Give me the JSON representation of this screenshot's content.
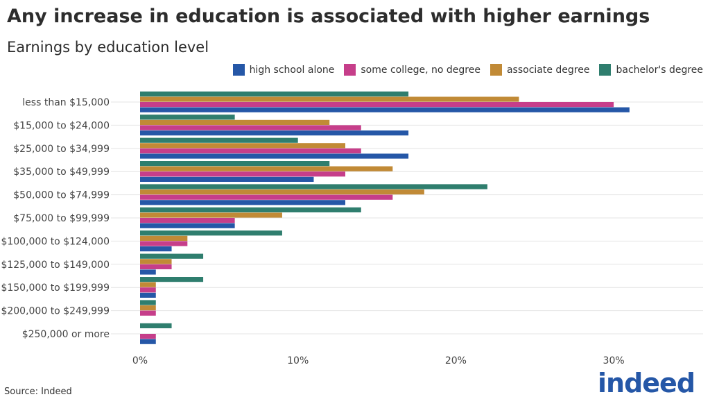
{
  "title": "Any increase in education is associated with higher earnings",
  "subtitle": "Earnings by education level",
  "source": "Source: Indeed",
  "logo": "indeed",
  "chart_data": {
    "type": "bar",
    "orientation": "horizontal",
    "categories": [
      "less than $15,000",
      "$15,000 to $24,000",
      "$25,000 to $34,999",
      "$35,000 to $49,999",
      "$50,000 to $74,999",
      "$75,000 to $99,999",
      "$100,000 to $124,000",
      "$125,000 to $149,000",
      "$150,000 to $199,999",
      "$200,000 to $249,999",
      "$250,000 or more"
    ],
    "series": [
      {
        "name": "high school alone",
        "color": "#2557a7",
        "values": [
          31,
          17,
          17,
          11,
          13,
          6,
          2,
          1,
          1,
          0,
          1
        ]
      },
      {
        "name": "some college, no degree",
        "color": "#c63e8a",
        "values": [
          30,
          14,
          14,
          13,
          16,
          6,
          3,
          2,
          1,
          1,
          1
        ]
      },
      {
        "name": "associate degree",
        "color": "#c18a36",
        "values": [
          24,
          12,
          13,
          16,
          18,
          9,
          3,
          2,
          1,
          1,
          0
        ]
      },
      {
        "name": "bachelor's degree",
        "color": "#2f7e6e",
        "values": [
          17,
          6,
          10,
          12,
          22,
          14,
          9,
          4,
          4,
          1,
          2
        ]
      }
    ],
    "xlim": [
      0,
      35
    ],
    "xticks": [
      "0%",
      "10%",
      "20%",
      "30%"
    ],
    "xtick_values": [
      0,
      10,
      20,
      30
    ],
    "legend": "top-right",
    "grid": "horizontal"
  }
}
